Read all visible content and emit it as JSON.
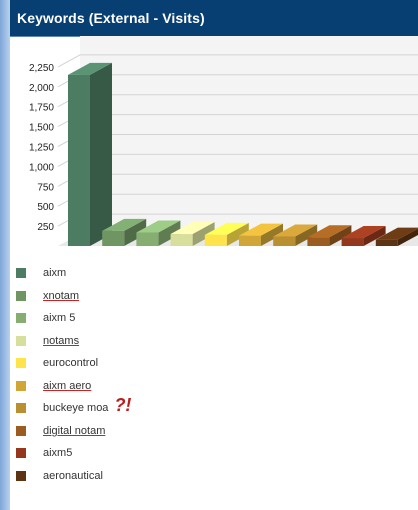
{
  "title": "Keywords (External - Visits)",
  "annotation": "?!",
  "chart_data": {
    "type": "bar",
    "categories": [
      "aixm",
      "xnotam",
      "aixm 5",
      "notams",
      "eurocontrol",
      "aixm aero",
      "buckeye moa",
      "digital notam",
      "aixm5",
      "aeronautical"
    ],
    "values": [
      2150,
      190,
      170,
      150,
      140,
      130,
      120,
      110,
      100,
      80
    ],
    "colors": [
      "#4c7d62",
      "#6f9563",
      "#86ae72",
      "#d8df9c",
      "#ffe34a",
      "#cfa637",
      "#ba8f32",
      "#9a5c20",
      "#93381d",
      "#5d3413"
    ],
    "y_ticks": [
      "250",
      "500",
      "750",
      "1,000",
      "1,250",
      "1,500",
      "1,750",
      "2,000",
      "2,250"
    ],
    "ylim": [
      0,
      2500
    ],
    "grid": true,
    "legend_position": "bottom"
  },
  "legend": [
    {
      "label": "aixm",
      "underline": false
    },
    {
      "label": "xnotam",
      "underline": true
    },
    {
      "label": "aixm 5",
      "underline": false
    },
    {
      "label": "notams",
      "underline": true
    },
    {
      "label": "eurocontrol",
      "underline": false
    },
    {
      "label": "aixm aero",
      "underline": true
    },
    {
      "label": "buckeye moa",
      "underline": false
    },
    {
      "label": "digital notam",
      "underline": true
    },
    {
      "label": "aixm5",
      "underline": false
    },
    {
      "label": "aeronautical",
      "underline": false
    }
  ]
}
